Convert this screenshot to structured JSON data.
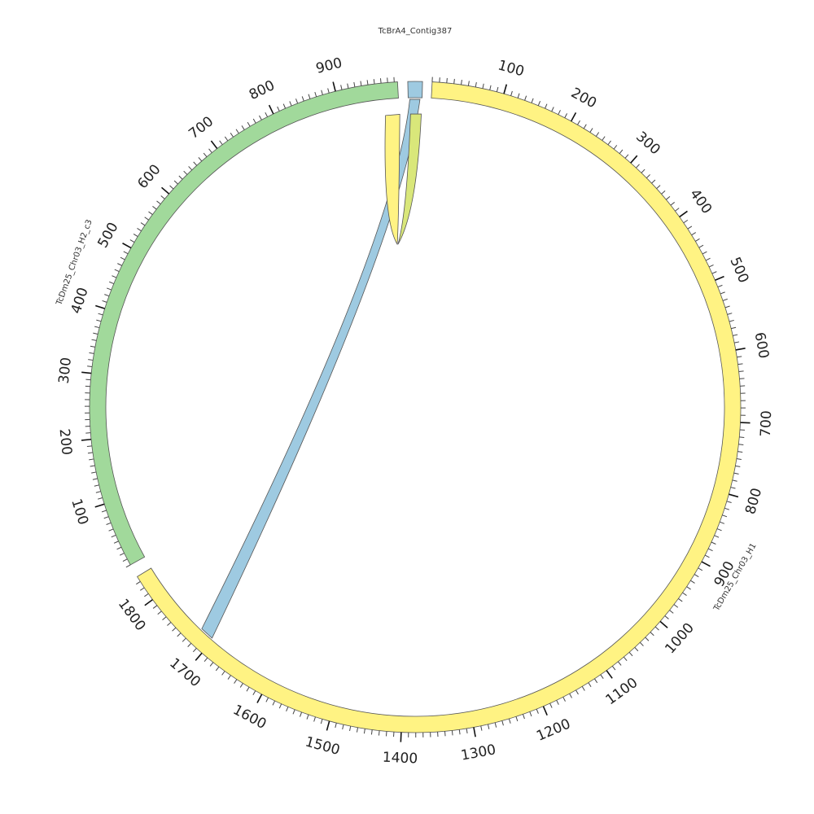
{
  "segments": [
    {
      "id": "contig387",
      "name": "TcBrA4_Contig387",
      "length": 28,
      "color": "#9ecae1",
      "tick_labels": []
    },
    {
      "id": "chr03_h1",
      "name": "TcDm25_Chr03_H1",
      "length": 1838,
      "color": "#fff383",
      "tick_labels": [
        "100",
        "200",
        "300",
        "400",
        "500",
        "600",
        "700",
        "800",
        "900",
        "1000",
        "1100",
        "1200",
        "1300",
        "1400",
        "1500",
        "1600",
        "1700",
        "1800"
      ]
    },
    {
      "id": "chr03_h2_c3",
      "name": "TcDm25_Chr03_H2_c3",
      "length": 995,
      "color": "#a1d99b",
      "tick_labels": [
        "100",
        "200",
        "300",
        "400",
        "500",
        "600",
        "700",
        "800",
        "900"
      ]
    }
  ],
  "links": [
    {
      "from": "TcBrA4_Contig387",
      "to": "TcDm25_Chr03_H1",
      "color": "#9ecae1",
      "opacity": 1
    },
    {
      "from": "TcBrA4_Contig387",
      "to": "TcDm25_Chr03_H2_c3",
      "color": "#fff383",
      "opacity": 1
    },
    {
      "from": "TcBrA4_Contig387",
      "to": "TcDm25_Chr03_H1",
      "color": "#d9e77a",
      "opacity": 1
    }
  ]
}
